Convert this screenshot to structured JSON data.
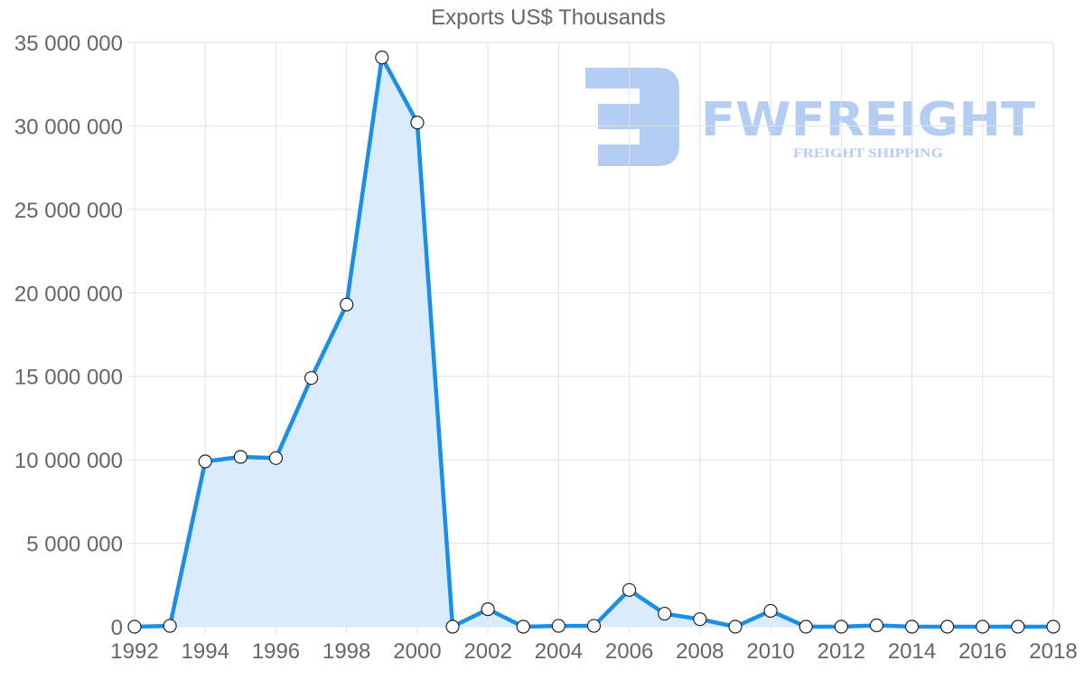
{
  "chart": {
    "title": "Exports US$ Thousands"
  },
  "watermark": {
    "brand": "FWFREIGHT",
    "tagline": "FREIGHT SHIPPING",
    "color": "#b3cdf3"
  },
  "style": {
    "line_color": "#1a8fe8",
    "fill_color": "#d8ebfb",
    "point_fill": "#ffffff",
    "point_stroke": "#222222",
    "grid_color": "#e2e2e2",
    "text_color": "#666666"
  },
  "chart_data": {
    "type": "area",
    "title": "Exports US$ Thousands",
    "xlabel": "",
    "ylabel": "",
    "ylim": [
      0,
      35000000
    ],
    "y_ticks": [
      "0",
      "5 000 000",
      "10 000 000",
      "15 000 000",
      "20 000 000",
      "25 000 000",
      "30 000 000",
      "35 000 000"
    ],
    "x_tick_labels": [
      "1992",
      "1994",
      "1996",
      "1998",
      "2000",
      "2002",
      "2004",
      "2006",
      "2008",
      "2010",
      "2012",
      "2014",
      "2016",
      "2018"
    ],
    "grid": true,
    "legend": "none",
    "x": [
      1992,
      1993,
      1994,
      1995,
      1996,
      1997,
      1998,
      1999,
      2000,
      2001,
      2002,
      2003,
      2004,
      2005,
      2006,
      2007,
      2008,
      2009,
      2010,
      2011,
      2012,
      2013,
      2014,
      2015,
      2016,
      2017,
      2018
    ],
    "series": [
      {
        "name": "Exports US$ Thousands",
        "values": [
          0,
          50000,
          9900000,
          10170000,
          10100000,
          14900000,
          19300000,
          34100000,
          30200000,
          0,
          1050000,
          0,
          50000,
          50000,
          2200000,
          780000,
          450000,
          0,
          950000,
          0,
          0,
          80000,
          0,
          0,
          0,
          0,
          0
        ]
      }
    ]
  }
}
